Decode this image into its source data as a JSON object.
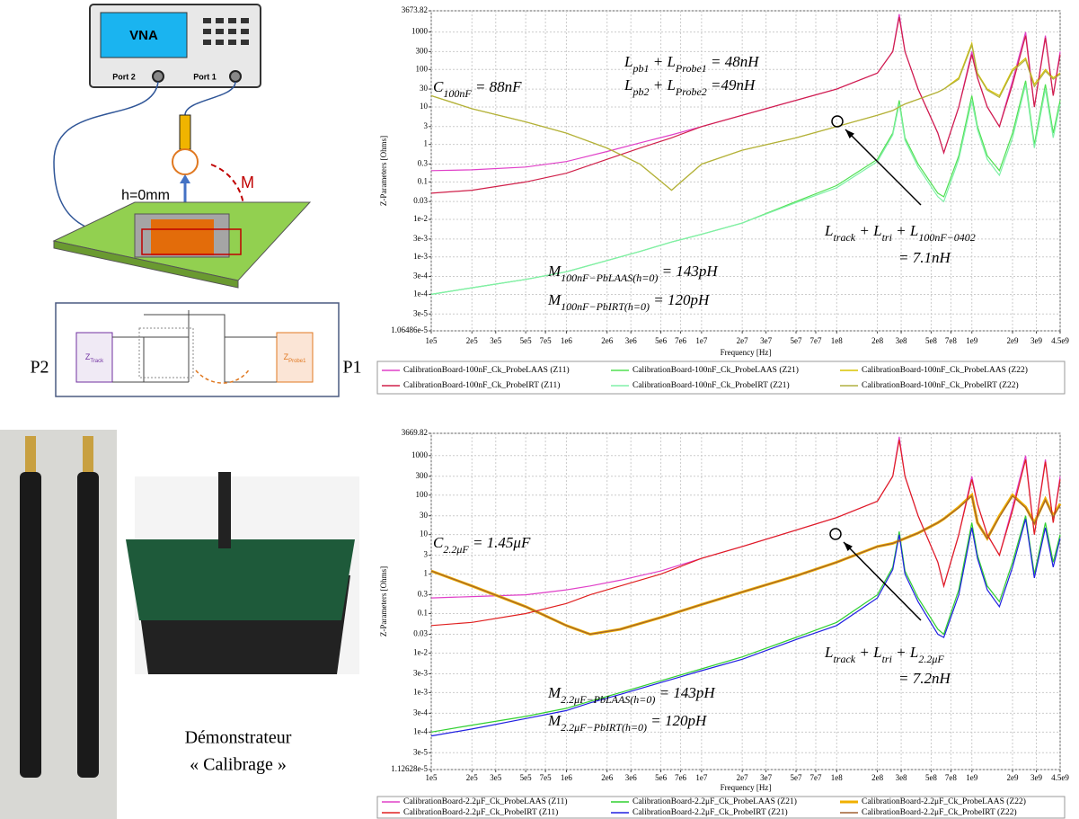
{
  "diagram": {
    "vna": "VNA",
    "port2": "Port 2",
    "port1": "Port 1",
    "height": "h=0mm",
    "mutual": "M",
    "p2": "P2",
    "p1": "P1",
    "z_track": [
      "Z",
      "Track"
    ],
    "z_probe": [
      "Z",
      "Probe1"
    ]
  },
  "photo_caption": [
    "Démonstrateur",
    "« Calibrage »"
  ],
  "chart_data": [
    {
      "type": "line",
      "x_label": "Frequency [Hz]",
      "y_label": "Z-Parameters [Ohms]",
      "log_x": true,
      "log_y": true,
      "grid": true,
      "xlim": [
        100000.0,
        4500000000.0
      ],
      "ylim": [
        1.06486e-05,
        3673.82
      ],
      "xticks": [
        {
          "value": 100000.0,
          "label": "1e5"
        },
        {
          "value": 200000.0,
          "label": "2e5"
        },
        {
          "value": 300000.0,
          "label": "3e5"
        },
        {
          "value": 500000.0,
          "label": "5e5"
        },
        {
          "value": 700000.0,
          "label": "7e5"
        },
        {
          "value": 1000000.0,
          "label": "1e6"
        },
        {
          "value": 2000000.0,
          "label": "2e6"
        },
        {
          "value": 3000000.0,
          "label": "3e6"
        },
        {
          "value": 5000000.0,
          "label": "5e6"
        },
        {
          "value": 7000000.0,
          "label": "7e6"
        },
        {
          "value": 10000000.0,
          "label": "1e7"
        },
        {
          "value": 20000000.0,
          "label": "2e7"
        },
        {
          "value": 30000000.0,
          "label": "3e7"
        },
        {
          "value": 50000000.0,
          "label": "5e7"
        },
        {
          "value": 70000000.0,
          "label": "7e7"
        },
        {
          "value": 100000000.0,
          "label": "1e8"
        },
        {
          "value": 200000000.0,
          "label": "2e8"
        },
        {
          "value": 300000000.0,
          "label": "3e8"
        },
        {
          "value": 500000000.0,
          "label": "5e8"
        },
        {
          "value": 700000000.0,
          "label": "7e8"
        },
        {
          "value": 1000000000.0,
          "label": "1e9"
        },
        {
          "value": 2000000000.0,
          "label": "2e9"
        },
        {
          "value": 3000000000.0,
          "label": "3e9"
        },
        {
          "value": 4500000000.0,
          "label": "4.5e9"
        }
      ],
      "yticks": [
        {
          "value": 1.06486e-05,
          "label": "1.06486e-5"
        },
        {
          "value": 3e-05,
          "label": "3e-5"
        },
        {
          "value": 0.0001,
          "label": "1e-4"
        },
        {
          "value": 0.0003,
          "label": "3e-4"
        },
        {
          "value": 0.001,
          "label": "1e-3"
        },
        {
          "value": 0.003,
          "label": "3e-3"
        },
        {
          "value": 0.01,
          "label": "1e-2"
        },
        0.03,
        0.1,
        0.3,
        1,
        3,
        10,
        30,
        100,
        300,
        1000,
        3673.82
      ],
      "x": [
        100000.0,
        200000.0,
        500000.0,
        1000000.0,
        2000000.0,
        3500000.0,
        6000000.0,
        10000000.0,
        20000000.0,
        50000000.0,
        100000000.0,
        200000000.0,
        260000000.0,
        290000000.0,
        320000000.0,
        400000000.0,
        560000000.0,
        620000000.0,
        800000000.0,
        1000000000.0,
        1100000000.0,
        1300000000.0,
        1600000000.0,
        2000000000.0,
        2500000000.0,
        2900000000.0,
        3500000000.0,
        4000000000.0,
        4500000000.0
      ],
      "series": [
        {
          "name": "CalibrationBoard-100nF_Ck_ProbeLAAS (Z11)",
          "color": "#e040c8",
          "values": [
            0.2,
            0.21,
            0.25,
            0.35,
            0.65,
            1.1,
            1.8,
            3,
            6,
            15,
            30,
            80,
            300,
            3000,
            300,
            30,
            2,
            0.6,
            10,
            300,
            60,
            10,
            3,
            50,
            1000,
            10,
            800,
            20,
            300
          ]
        },
        {
          "name": "CalibrationBoard-100nF_Ck_ProbeLAAS (Z21)",
          "color": "#50e050",
          "values": [
            0.0001,
            0.00015,
            0.00025,
            0.0004,
            0.0008,
            0.0014,
            0.0025,
            0.004,
            0.008,
            0.03,
            0.08,
            0.4,
            2,
            15,
            1.5,
            0.3,
            0.05,
            0.04,
            0.5,
            20,
            3,
            0.5,
            0.2,
            2,
            50,
            1,
            40,
            2,
            15
          ]
        },
        {
          "name": "CalibrationBoard-100nF_Ck_ProbeLAAS (Z22)",
          "color": "#d8c400",
          "values": [
            20,
            9,
            4,
            2,
            0.8,
            0.3,
            0.06,
            0.3,
            0.7,
            1.5,
            3,
            6,
            8,
            10,
            12,
            16,
            25,
            30,
            60,
            500,
            80,
            30,
            20,
            100,
            200,
            40,
            100,
            60,
            80
          ]
        },
        {
          "name": "CalibrationBoard-100nF_Ck_ProbeIRT (Z11)",
          "color": "#d0204a",
          "values": [
            0.05,
            0.06,
            0.1,
            0.17,
            0.4,
            0.8,
            1.5,
            3,
            6,
            15,
            30,
            80,
            300,
            2500,
            300,
            30,
            2,
            0.6,
            10,
            250,
            60,
            10,
            3,
            40,
            800,
            10,
            700,
            20,
            250
          ]
        },
        {
          "name": "CalibrationBoard-100nF_Ck_ProbeIRT (Z21)",
          "color": "#80f0a8",
          "values": [
            0.0001,
            0.00015,
            0.00025,
            0.0004,
            0.0008,
            0.0014,
            0.0025,
            0.004,
            0.008,
            0.028,
            0.07,
            0.35,
            1.8,
            12,
            1.3,
            0.25,
            0.04,
            0.03,
            0.4,
            15,
            2.5,
            0.4,
            0.15,
            1.5,
            40,
            0.8,
            30,
            1.5,
            12
          ]
        },
        {
          "name": "CalibrationBoard-100nF_Ck_ProbeIRT (Z22)",
          "color": "#b0b040",
          "values": [
            20,
            9,
            4,
            2,
            0.8,
            0.3,
            0.06,
            0.3,
            0.7,
            1.5,
            3,
            6,
            8,
            10,
            12,
            16,
            25,
            30,
            55,
            450,
            75,
            28,
            18,
            90,
            180,
            35,
            90,
            55,
            75
          ]
        }
      ],
      "annotations": [
        [
          "C",
          "100nF",
          " = 88nF"
        ],
        [
          "L",
          "pb1",
          " + L",
          "Probe1",
          " = 48nH"
        ],
        [
          "L",
          "pb2",
          " + L",
          "Probe2",
          " =49nH"
        ],
        [
          "L",
          "track",
          " + L",
          "tri",
          " + L",
          "100nF−0402"
        ],
        [
          "= 7.1nH"
        ],
        [
          "M",
          "100nF−PbLAAS(h=0)",
          " = 143pH"
        ],
        [
          "M",
          "100nF−PbIRT(h=0)",
          " = 120pH"
        ]
      ]
    },
    {
      "type": "line",
      "x_label": "Frequency [Hz]",
      "y_label": "Z-Parameters [Ohms]",
      "log_x": true,
      "log_y": true,
      "grid": true,
      "xlim": [
        100000.0,
        4500000000.0
      ],
      "ylim": [
        1.12628e-05,
        3669.82
      ],
      "xticks": [
        {
          "value": 100000.0,
          "label": "1e5"
        },
        {
          "value": 200000.0,
          "label": "2e5"
        },
        {
          "value": 300000.0,
          "label": "3e5"
        },
        {
          "value": 500000.0,
          "label": "5e5"
        },
        {
          "value": 700000.0,
          "label": "7e5"
        },
        {
          "value": 1000000.0,
          "label": "1e6"
        },
        {
          "value": 2000000.0,
          "label": "2e6"
        },
        {
          "value": 3000000.0,
          "label": "3e6"
        },
        {
          "value": 5000000.0,
          "label": "5e6"
        },
        {
          "value": 7000000.0,
          "label": "7e6"
        },
        {
          "value": 10000000.0,
          "label": "1e7"
        },
        {
          "value": 20000000.0,
          "label": "2e7"
        },
        {
          "value": 30000000.0,
          "label": "3e7"
        },
        {
          "value": 50000000.0,
          "label": "5e7"
        },
        {
          "value": 70000000.0,
          "label": "7e7"
        },
        {
          "value": 100000000.0,
          "label": "1e8"
        },
        {
          "value": 200000000.0,
          "label": "2e8"
        },
        {
          "value": 300000000.0,
          "label": "3e8"
        },
        {
          "value": 500000000.0,
          "label": "5e8"
        },
        {
          "value": 700000000.0,
          "label": "7e8"
        },
        {
          "value": 1000000000.0,
          "label": "1e9"
        },
        {
          "value": 2000000000.0,
          "label": "2e9"
        },
        {
          "value": 3000000000.0,
          "label": "3e9"
        },
        {
          "value": 4500000000.0,
          "label": "4.5e9"
        }
      ],
      "yticks": [
        {
          "value": 1.12628e-05,
          "label": "1.12628e-5"
        },
        {
          "value": 3e-05,
          "label": "3e-5"
        },
        {
          "value": 0.0001,
          "label": "1e-4"
        },
        {
          "value": 0.0003,
          "label": "3e-4"
        },
        {
          "value": 0.001,
          "label": "1e-3"
        },
        {
          "value": 0.003,
          "label": "3e-3"
        },
        {
          "value": 0.01,
          "label": "1e-2"
        },
        0.03,
        0.1,
        0.3,
        1,
        3,
        10,
        30,
        100,
        300,
        1000,
        3669.82
      ],
      "x": [
        100000.0,
        200000.0,
        500000.0,
        1000000.0,
        1500000.0,
        2500000.0,
        5000000.0,
        10000000.0,
        20000000.0,
        50000000.0,
        100000000.0,
        200000000.0,
        260000000.0,
        290000000.0,
        320000000.0,
        400000000.0,
        560000000.0,
        620000000.0,
        800000000.0,
        1000000000.0,
        1100000000.0,
        1300000000.0,
        1600000000.0,
        2000000000.0,
        2500000000.0,
        2900000000.0,
        3500000000.0,
        4000000000.0,
        4500000000.0
      ],
      "series": [
        {
          "name": "CalibrationBoard-2.2μF_Ck_ProbeLAAS (Z11)",
          "color": "#e040c8",
          "values": [
            0.25,
            0.27,
            0.3,
            0.4,
            0.5,
            0.7,
            1.2,
            2.5,
            5,
            13,
            27,
            70,
            300,
            3000,
            300,
            30,
            2,
            0.5,
            10,
            300,
            60,
            10,
            3,
            50,
            1000,
            10,
            800,
            20,
            300
          ]
        },
        {
          "name": "CalibrationBoard-2.2μF_Ck_ProbeLAAS (Z21)",
          "color": "#30d030",
          "values": [
            0.0001,
            0.00015,
            0.00025,
            0.0004,
            0.0006,
            0.001,
            0.002,
            0.004,
            0.008,
            0.025,
            0.06,
            0.3,
            1.5,
            12,
            1.2,
            0.25,
            0.04,
            0.03,
            0.4,
            20,
            3,
            0.5,
            0.2,
            2,
            30,
            1,
            20,
            2,
            10
          ]
        },
        {
          "name": "CalibrationBoard-2.2μF_Ck_ProbeLAAS (Z22)",
          "color": "#f0b000",
          "values": [
            1.2,
            0.5,
            0.15,
            0.05,
            0.03,
            0.04,
            0.08,
            0.17,
            0.35,
            0.9,
            2,
            5,
            6,
            7,
            8,
            11,
            20,
            25,
            50,
            100,
            20,
            8,
            30,
            100,
            50,
            20,
            80,
            30,
            60
          ]
        },
        {
          "name": "CalibrationBoard-2.2μF_Ck_ProbeIRT (Z11)",
          "color": "#e02020",
          "values": [
            0.05,
            0.06,
            0.1,
            0.18,
            0.3,
            0.5,
            1,
            2.5,
            5,
            13,
            27,
            70,
            300,
            2500,
            300,
            30,
            2,
            0.5,
            10,
            250,
            60,
            10,
            3,
            40,
            800,
            10,
            700,
            20,
            250
          ]
        },
        {
          "name": "CalibrationBoard-2.2μF_Ck_ProbeIRT (Z21)",
          "color": "#2020e0",
          "values": [
            8e-05,
            0.00012,
            0.00022,
            0.00035,
            0.00055,
            0.0009,
            0.0018,
            0.0036,
            0.007,
            0.022,
            0.05,
            0.25,
            1.3,
            10,
            1,
            0.2,
            0.03,
            0.025,
            0.3,
            15,
            2.5,
            0.4,
            0.15,
            1.5,
            25,
            0.8,
            15,
            1.5,
            8
          ]
        },
        {
          "name": "CalibrationBoard-2.2μF_Ck_ProbeIRT (Z22)",
          "color": "#a06030",
          "values": [
            1.2,
            0.5,
            0.15,
            0.05,
            0.03,
            0.04,
            0.08,
            0.17,
            0.35,
            0.9,
            2,
            5,
            6,
            7,
            8,
            11,
            20,
            25,
            48,
            95,
            20,
            8,
            28,
            95,
            48,
            19,
            75,
            28,
            55
          ]
        }
      ],
      "annotations": [
        [
          "C",
          "2.2μF",
          " = 1.45μF"
        ],
        [
          "L",
          "track",
          " + L",
          "tri",
          " + L",
          "2.2μF"
        ],
        [
          "= 7.2nH"
        ],
        [
          "M",
          "2.2μF−PbLAAS(h=0)",
          " = 143pH"
        ],
        [
          "M",
          "2.2μF−PbIRT(h=0)",
          " = 120pH"
        ]
      ]
    }
  ]
}
